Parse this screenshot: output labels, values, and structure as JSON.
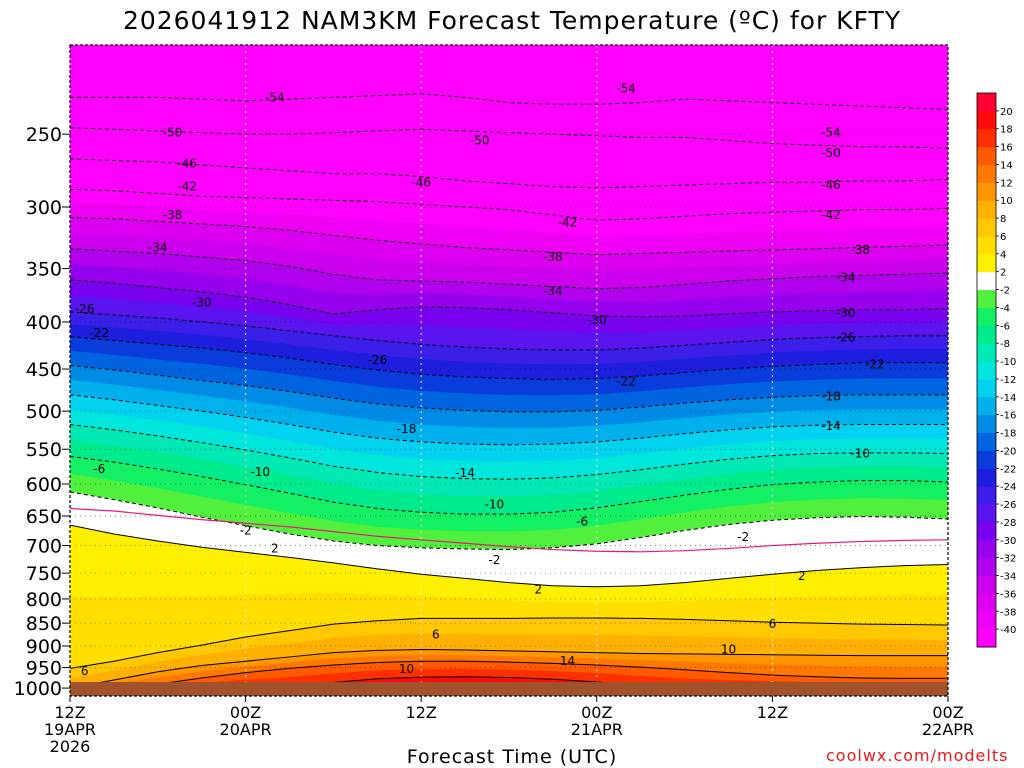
{
  "chart_data": {
    "type": "heatmap",
    "title": "2026041912 NAM3KM Forecast Temperature (ºC) for KFTY",
    "xlabel": "Forecast Time (UTC)",
    "ylabel": "",
    "y_scale": "log",
    "y_inverted": true,
    "ylim": [
      1020,
      200
    ],
    "y_ticks": [
      250,
      300,
      350,
      400,
      450,
      500,
      550,
      600,
      650,
      700,
      750,
      800,
      850,
      900,
      950,
      1000
    ],
    "x_hours": [
      0,
      12,
      24,
      36,
      48,
      60
    ],
    "x_ticks": [
      {
        "line1": "12Z",
        "line2": "19APR",
        "line3": "2026"
      },
      {
        "line1": "00Z",
        "line2": "20APR",
        "line3": ""
      },
      {
        "line1": "12Z",
        "line2": "",
        "line3": ""
      },
      {
        "line1": "00Z",
        "line2": "21APR",
        "line3": ""
      },
      {
        "line1": "12Z",
        "line2": "",
        "line3": ""
      },
      {
        "line1": "00Z",
        "line2": "22APR",
        "line3": ""
      }
    ],
    "xlim_hours": [
      0,
      60
    ],
    "grid": true,
    "surface_pressure": 985,
    "colorbar": {
      "levels": [
        -40,
        -38,
        -36,
        -34,
        -32,
        -30,
        -28,
        -26,
        -24,
        -22,
        -20,
        -18,
        -16,
        -14,
        -12,
        -10,
        -8,
        -6,
        -4,
        -2,
        2,
        4,
        6,
        8,
        10,
        12,
        14,
        16,
        18,
        20
      ],
      "labels": [
        "-40",
        "-38",
        "-36",
        "-34",
        "-32",
        "-30",
        "-28",
        "-26",
        "-24",
        "-22",
        "-20",
        "-18",
        "-16",
        "-14",
        "-12",
        "-10",
        "-8",
        "-6",
        "-4",
        "-2",
        "2",
        "4",
        "6",
        "8",
        "10",
        "12",
        "14",
        "16",
        "18",
        "20"
      ],
      "colors": [
        "#ff00ff",
        "#ee00f5",
        "#dd00f0",
        "#cc00ee",
        "#b100ee",
        "#9600ee",
        "#7a00f0",
        "#5a14f0",
        "#3c1eeb",
        "#1e1ede",
        "#0a3cdc",
        "#0064e0",
        "#008ce6",
        "#00b0ec",
        "#00d2f0",
        "#00e6dc",
        "#00e8b4",
        "#00eb8c",
        "#14f064",
        "#50f03c",
        "#ffffff",
        "#fff000",
        "#ffde00",
        "#ffc800",
        "#ffb000",
        "#ff9600",
        "#ff7800",
        "#ff5a00",
        "#ff3000",
        "#ff0a0a",
        "#ff0032"
      ]
    },
    "hours": [
      0,
      3,
      6,
      9,
      12,
      15,
      18,
      21,
      24,
      27,
      30,
      33,
      36,
      39,
      42,
      45,
      48,
      51,
      54,
      57,
      60
    ],
    "isotherm_pressures": {
      "-54": [
        228,
        228,
        228,
        229,
        230,
        229,
        228,
        227,
        226,
        228,
        231,
        232,
        232,
        231,
        229,
        230,
        231,
        232,
        233,
        234,
        235
      ],
      "-50": [
        246,
        247,
        248,
        249,
        250,
        250,
        249,
        248,
        247,
        248,
        249,
        250,
        251,
        252,
        252,
        254,
        256,
        257,
        258,
        258,
        259
      ],
      "-46": [
        266,
        267,
        268,
        270,
        272,
        274,
        276,
        276,
        278,
        281,
        283,
        285,
        286,
        285,
        284,
        283,
        282,
        282,
        281,
        281,
        280
      ],
      "-42": [
        287,
        288,
        290,
        292,
        293,
        294,
        295,
        296,
        298,
        300,
        302,
        306,
        310,
        309,
        307,
        305,
        304,
        303,
        302,
        302,
        301
      ],
      "-38": [
        308,
        309,
        311,
        313,
        315,
        318,
        322,
        326,
        329,
        332,
        334,
        336,
        338,
        337,
        336,
        335,
        334,
        333,
        332,
        331,
        330
      ],
      "-34": [
        333,
        335,
        337,
        340,
        343,
        348,
        355,
        360,
        361,
        362,
        364,
        366,
        368,
        367,
        364,
        361,
        359,
        357,
        356,
        355,
        354
      ],
      "-30": [
        360,
        363,
        367,
        371,
        376,
        383,
        392,
        388,
        385,
        386,
        388,
        391,
        394,
        395,
        394,
        392,
        390,
        389,
        388,
        388,
        387
      ],
      "-26": [
        390,
        393,
        396,
        400,
        404,
        409,
        414,
        419,
        423,
        426,
        428,
        429,
        429,
        427,
        424,
        421,
        418,
        416,
        415,
        414,
        414
      ],
      "-22": [
        415,
        419,
        423,
        427,
        432,
        438,
        445,
        451,
        456,
        459,
        461,
        462,
        461,
        458,
        454,
        450,
        447,
        445,
        443,
        443,
        443
      ],
      "-18": [
        446,
        451,
        457,
        463,
        469,
        476,
        484,
        491,
        496,
        499,
        501,
        501,
        499,
        495,
        490,
        486,
        483,
        481,
        480,
        480,
        480
      ],
      "-14": [
        480,
        486,
        493,
        500,
        508,
        517,
        527,
        535,
        540,
        543,
        544,
        543,
        540,
        535,
        529,
        524,
        520,
        518,
        517,
        517,
        517
      ],
      "-10": [
        517,
        524,
        532,
        541,
        551,
        562,
        574,
        583,
        589,
        592,
        593,
        591,
        586,
        579,
        571,
        564,
        559,
        556,
        555,
        555,
        556
      ],
      "-6": [
        560,
        568,
        578,
        589,
        601,
        614,
        628,
        638,
        644,
        647,
        647,
        644,
        637,
        627,
        617,
        608,
        601,
        597,
        595,
        595,
        597
      ],
      "-2": [
        612,
        624,
        637,
        652,
        666,
        680,
        692,
        700,
        704,
        706,
        707,
        704,
        697,
        686,
        674,
        664,
        657,
        653,
        651,
        652,
        655
      ],
      "2": [
        665,
        680,
        692,
        703,
        712,
        721,
        731,
        742,
        752,
        760,
        768,
        774,
        776,
        774,
        768,
        760,
        752,
        745,
        740,
        736,
        734
      ],
      "6": [
        952,
        935,
        915,
        898,
        880,
        866,
        852,
        845,
        840,
        840,
        840,
        839,
        839,
        840,
        842,
        845,
        848,
        850,
        852,
        853,
        854
      ],
      "10": [
        1000,
        980,
        960,
        945,
        935,
        925,
        915,
        910,
        908,
        909,
        911,
        913,
        915,
        917,
        918,
        919,
        920,
        921,
        922,
        922,
        922
      ],
      "14": [
        1000,
        1000,
        990,
        975,
        962,
        952,
        944,
        938,
        935,
        935,
        937,
        940,
        944,
        949,
        955,
        962,
        968,
        972,
        975,
        976,
        976
      ],
      "18": [
        1000,
        1000,
        1000,
        1000,
        1000,
        995,
        986,
        977,
        973,
        972,
        974,
        978,
        985,
        993,
        1000,
        1000,
        1000,
        1000,
        1000,
        1000,
        1000
      ]
    },
    "freezing_level_pressures": [
      638,
      642,
      649,
      656,
      662,
      668,
      676,
      684,
      690,
      696,
      702,
      707,
      710,
      711,
      709,
      705,
      700,
      696,
      693,
      691,
      690
    ],
    "contour_labels": [
      {
        "value": "-54",
        "hour": 14,
        "p": 228
      },
      {
        "value": "-54",
        "hour": 38,
        "p": 223
      },
      {
        "value": "-54",
        "hour": 52,
        "p": 249
      },
      {
        "value": "-50",
        "hour": 7,
        "p": 249
      },
      {
        "value": "-50",
        "hour": 28,
        "p": 254
      },
      {
        "value": "-50",
        "hour": 52,
        "p": 262
      },
      {
        "value": "-46",
        "hour": 8,
        "p": 269
      },
      {
        "value": "-46",
        "hour": 24,
        "p": 282
      },
      {
        "value": "-46",
        "hour": 52,
        "p": 284
      },
      {
        "value": "-42",
        "hour": 8,
        "p": 285
      },
      {
        "value": "-42",
        "hour": 34,
        "p": 312
      },
      {
        "value": "-42",
        "hour": 52,
        "p": 306
      },
      {
        "value": "-38",
        "hour": 7,
        "p": 306
      },
      {
        "value": "-38",
        "hour": 33,
        "p": 340
      },
      {
        "value": "-38",
        "hour": 54,
        "p": 334
      },
      {
        "value": "-34",
        "hour": 6,
        "p": 332
      },
      {
        "value": "-34",
        "hour": 33,
        "p": 370
      },
      {
        "value": "-34",
        "hour": 53,
        "p": 358
      },
      {
        "value": "-30",
        "hour": 9,
        "p": 381
      },
      {
        "value": "-30",
        "hour": 36,
        "p": 398
      },
      {
        "value": "-30",
        "hour": 53,
        "p": 391
      },
      {
        "value": "-26",
        "hour": 1,
        "p": 387
      },
      {
        "value": "-26",
        "hour": 21,
        "p": 440
      },
      {
        "value": "-26",
        "hour": 53,
        "p": 416
      },
      {
        "value": "-22",
        "hour": 2,
        "p": 411
      },
      {
        "value": "-22",
        "hour": 38,
        "p": 464
      },
      {
        "value": "-22",
        "hour": 55,
        "p": 445
      },
      {
        "value": "-18",
        "hour": 23,
        "p": 523
      },
      {
        "value": "-18",
        "hour": 52,
        "p": 482
      },
      {
        "value": "-14",
        "hour": 27,
        "p": 584
      },
      {
        "value": "-14",
        "hour": 52,
        "p": 519
      },
      {
        "value": "-10",
        "hour": 13,
        "p": 582
      },
      {
        "value": "-10",
        "hour": 29,
        "p": 632
      },
      {
        "value": "-10",
        "hour": 54,
        "p": 556
      },
      {
        "value": "-6",
        "hour": 2,
        "p": 578
      },
      {
        "value": "-6",
        "hour": 35,
        "p": 659
      },
      {
        "value": "-2",
        "hour": 12,
        "p": 674
      },
      {
        "value": "-2",
        "hour": 29,
        "p": 726
      },
      {
        "value": "-2",
        "hour": 46,
        "p": 685
      },
      {
        "value": "2",
        "hour": 14,
        "p": 705
      },
      {
        "value": "2",
        "hour": 32,
        "p": 781
      },
      {
        "value": "2",
        "hour": 50,
        "p": 755
      },
      {
        "value": "6",
        "hour": 25,
        "p": 874
      },
      {
        "value": "6",
        "hour": 48,
        "p": 852
      },
      {
        "value": "10",
        "hour": 23,
        "p": 953
      },
      {
        "value": "10",
        "hour": 45,
        "p": 908
      },
      {
        "value": "14",
        "hour": 34,
        "p": 934
      },
      {
        "value": "6",
        "hour": 1,
        "p": 958
      }
    ]
  },
  "credit": "coolwx.com/modelts"
}
